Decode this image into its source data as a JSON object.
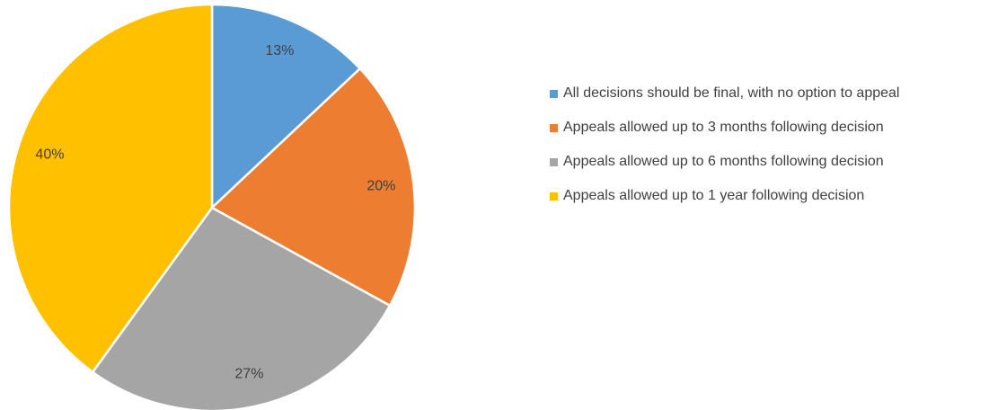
{
  "chart_data": {
    "type": "pie",
    "categories": [
      "All decisions should be final, with no option to appeal",
      "Appeals allowed up to 3 months following decision",
      "Appeals allowed up to 6 months following decision",
      "Appeals allowed up to 1 year following decision"
    ],
    "values": [
      13,
      20,
      27,
      40
    ],
    "value_labels": [
      "13%",
      "20%",
      "27%",
      "40%"
    ],
    "colors": [
      "#5b9bd5",
      "#ed7d31",
      "#a5a5a5",
      "#ffc000"
    ],
    "legend": "right"
  }
}
